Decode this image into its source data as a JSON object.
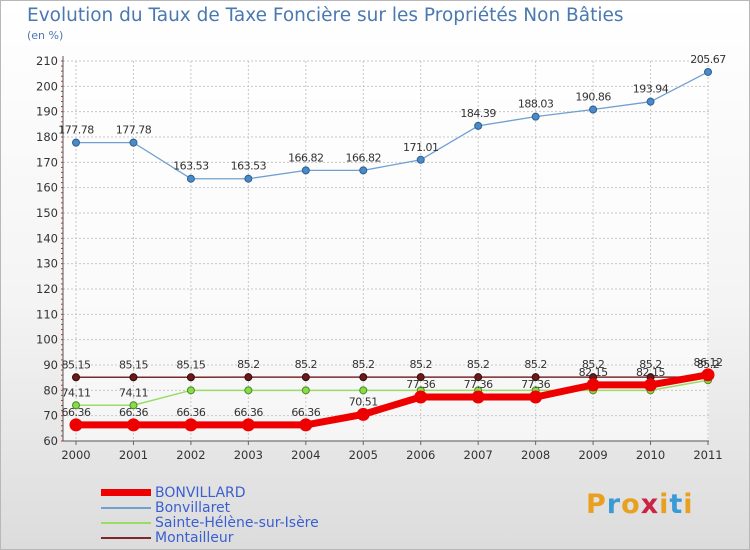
{
  "header": {
    "title": "Evolution du Taux de Taxe Foncière sur les Propriétés Non Bâties",
    "unit": "(en %)"
  },
  "brand": {
    "text": "Proxiti",
    "colors": [
      "#e8a020",
      "#3a9ad8",
      "#e8a020",
      "#cc2244",
      "#e8a020",
      "#3a9ad8",
      "#e8a020"
    ]
  },
  "chart_data": {
    "type": "line",
    "x": [
      "2000",
      "2001",
      "2002",
      "2003",
      "2004",
      "2005",
      "2006",
      "2007",
      "2008",
      "2009",
      "2010",
      "2011"
    ],
    "ylim": [
      60,
      210
    ],
    "yticks": [
      60,
      70,
      80,
      90,
      100,
      110,
      120,
      130,
      140,
      150,
      160,
      170,
      180,
      190,
      200,
      210
    ],
    "grid": true,
    "legend_position": "bottom-left",
    "series": [
      {
        "name": "BONVILLARD",
        "color": "#ee0000",
        "values": [
          66.36,
          66.36,
          66.36,
          66.36,
          66.36,
          70.51,
          77.36,
          77.36,
          77.36,
          82.15,
          82.15,
          86.12
        ],
        "labels": [
          "66.36",
          "66.36",
          "66.36",
          "66.36",
          "66.36",
          "70.51",
          "77.36",
          "77.36",
          "77.36",
          "82.15",
          "82.15",
          "86.12"
        ]
      },
      {
        "name": "Bonvillaret",
        "color": "#6fa0d0",
        "values": [
          177.78,
          177.78,
          163.53,
          163.53,
          166.82,
          166.82,
          171.01,
          184.39,
          188.03,
          190.86,
          193.94,
          205.67
        ],
        "labels": [
          "177.78",
          "177.78",
          "163.53",
          "163.53",
          "166.82",
          "166.82",
          "171.01",
          "184.39",
          "188.03",
          "190.86",
          "193.94",
          "205.67"
        ]
      },
      {
        "name": "Sainte-Hélène-sur-Isère",
        "color": "#99dd66",
        "values": [
          74.11,
          74.11,
          80,
          80,
          80,
          80,
          80,
          80,
          80,
          80,
          80,
          84
        ],
        "labels": [
          "74.11",
          "74.11",
          "",
          "",
          "",
          "",
          "",
          "",
          "",
          "",
          "",
          ""
        ]
      },
      {
        "name": "Montailleur",
        "color": "#7a2a2a",
        "values": [
          85.15,
          85.15,
          85.15,
          85.2,
          85.2,
          85.2,
          85.2,
          85.2,
          85.2,
          85.2,
          85.2,
          85.2
        ],
        "labels": [
          "85.15",
          "85.15",
          "85.15",
          "85.2",
          "85.2",
          "85.2",
          "85.2",
          "85.2",
          "85.2",
          "85.2",
          "85.2",
          "85.2"
        ]
      }
    ]
  }
}
